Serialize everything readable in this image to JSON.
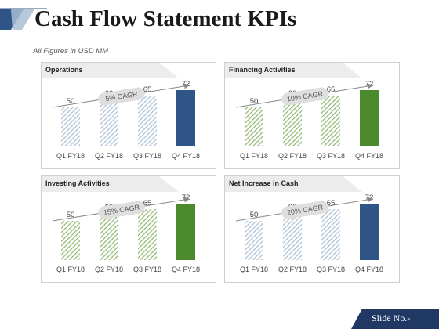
{
  "header": {
    "title": "Cash Flow Statement KPIs",
    "subtitle": "All Figures in USD MM"
  },
  "footer": {
    "slide_label": "Slide No.-"
  },
  "colors": {
    "dark_blue": "#2f5486",
    "light_blue": "#a9bed3",
    "green": "#4a8a2c",
    "light_green": "#8fb56d",
    "cagr_pill": "#dedede",
    "arrow": "#888888"
  },
  "chart_data": [
    {
      "type": "bar",
      "title": "Operations",
      "categories": [
        "Q1 FY18",
        "Q2 FY18",
        "Q3 FY18",
        "Q4 FY18"
      ],
      "values": [
        50,
        60,
        65,
        72
      ],
      "ylim": [
        0,
        80
      ],
      "annotation": "5% CAGR",
      "theme": "blue"
    },
    {
      "type": "bar",
      "title": "Financing Activities",
      "categories": [
        "Q1 FY18",
        "Q2 FY18",
        "Q3 FY18",
        "Q4 FY18"
      ],
      "values": [
        50,
        60,
        65,
        72
      ],
      "ylim": [
        0,
        80
      ],
      "annotation": "10% CAGR",
      "theme": "green"
    },
    {
      "type": "bar",
      "title": "Investing Activities",
      "categories": [
        "Q1 FY18",
        "Q2 FY18",
        "Q3 FY18",
        "Q4 FY18"
      ],
      "values": [
        50,
        60,
        65,
        72
      ],
      "ylim": [
        0,
        80
      ],
      "annotation": "15% CAGR",
      "theme": "green"
    },
    {
      "type": "bar",
      "title": "Net Increase in Cash",
      "categories": [
        "Q1 FY18",
        "Q2 FY18",
        "Q3 FY18",
        "Q4 FY18"
      ],
      "values": [
        50,
        60,
        65,
        72
      ],
      "ylim": [
        0,
        80
      ],
      "annotation": "20% CAGR",
      "theme": "blue"
    }
  ]
}
